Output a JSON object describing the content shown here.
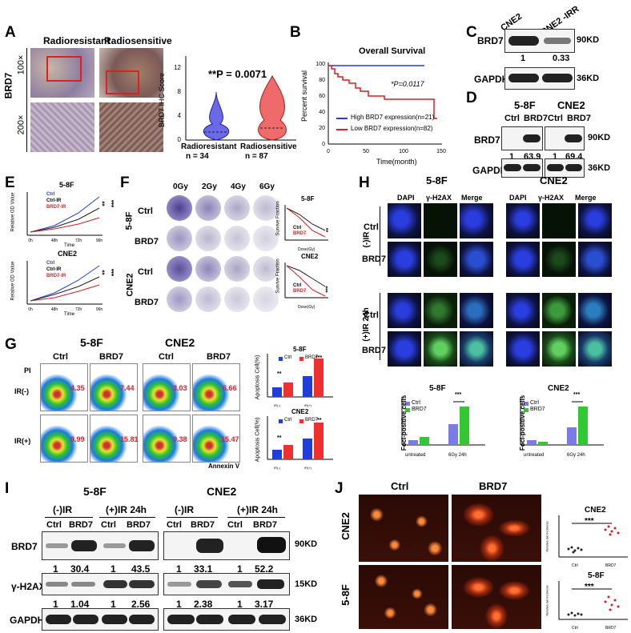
{
  "panels": {
    "A": {
      "letter": "A",
      "col_labels": [
        "Radioresistant",
        "Radiosensitive"
      ],
      "row_label": "BRD7",
      "mag_labels": [
        "100×",
        "200×"
      ],
      "violin": {
        "ylabel": "BRD7 IHC Score",
        "pvalue": "**P = 0.0071",
        "ticks": [
          "0",
          "4",
          "8",
          "12"
        ],
        "groups": [
          {
            "name": "Radioresistant",
            "n": "n = 34",
            "color": "#6a6ae8"
          },
          {
            "name": "Radiosensitive",
            "n": "n = 87",
            "color": "#ef6a6a"
          }
        ]
      }
    },
    "B": {
      "letter": "B",
      "title": "Overall Survival",
      "ylabel": "Percent survival",
      "xlabel": "Time(month)",
      "yticks": [
        "0",
        "20",
        "40",
        "60",
        "80",
        "100"
      ],
      "xticks": [
        "0",
        "50",
        "100",
        "150"
      ],
      "pvalue": "*P=0.0117",
      "legend": [
        {
          "label": "High BRD7 expression(n=21)",
          "color": "#1f3fd8"
        },
        {
          "label": "Low BRD7 expression(n=82)",
          "color": "#e01b1b"
        }
      ]
    },
    "C": {
      "letter": "C",
      "lanes": [
        "CNE2",
        "CNE2 -IRR"
      ],
      "rows": [
        {
          "name": "BRD7",
          "size": "90KD",
          "values": [
            "1",
            "0.33"
          ]
        },
        {
          "name": "GAPDH",
          "size": "36KD"
        }
      ]
    },
    "D": {
      "letter": "D",
      "cells": [
        "5-8F",
        "CNE2"
      ],
      "lanes": [
        "Ctrl",
        "BRD7",
        "Ctrl",
        "BRD7"
      ],
      "rows": [
        {
          "name": "BRD7",
          "size": "90KD",
          "values": [
            "1",
            "63.9",
            "1",
            "69.4"
          ]
        },
        {
          "name": "GAPDH",
          "size": "36KD"
        }
      ]
    },
    "E": {
      "letter": "E",
      "charts": [
        {
          "title": "5-8F",
          "ylabel": "Relative OD Value",
          "xlabel": "Time",
          "xticks": [
            "0h",
            "48h",
            "72h",
            "96h"
          ],
          "sig": [
            "**",
            "***"
          ],
          "legend": [
            "Ctrl",
            "Ctrl-IR",
            "BRD7-IR"
          ]
        },
        {
          "title": "CNE2",
          "ylabel": "Relative OD Value",
          "xlabel": "Time",
          "xticks": [
            "0h",
            "48h",
            "72h",
            "96h"
          ],
          "sig": [
            "**",
            "***"
          ],
          "legend": [
            "Ctrl",
            "Ctrl-IR",
            "BRD7-IR"
          ]
        }
      ]
    },
    "F": {
      "letter": "F",
      "doses": [
        "0Gy",
        "2Gy",
        "4Gy",
        "6Gy"
      ],
      "cells": [
        "5-8F",
        "CNE2"
      ],
      "rows": [
        "Ctrl",
        "BRD7",
        "Ctrl",
        "BRD7"
      ],
      "charts": [
        {
          "title": "5-8F",
          "ylabel": "Survive Fraction",
          "xlabel": "Dose(Gy)",
          "legend": [
            "Ctrl",
            "BRD7"
          ],
          "sig": "**"
        },
        {
          "title": "CNE2",
          "ylabel": "Survive Fraction",
          "xlabel": "Dose(Gy)",
          "legend": [
            "Ctrl",
            "BRD7"
          ],
          "sig": "***"
        }
      ]
    },
    "G": {
      "letter": "G",
      "cells": [
        "5-8F",
        "CNE2"
      ],
      "cols": [
        "Ctrl",
        "BRD7",
        "Ctrl",
        "BRD7"
      ],
      "rows": [
        "IR(-)",
        "IR(+)"
      ],
      "pi_label": "PI",
      "annexin_label": "Annexin V",
      "values": [
        [
          "4.35",
          "7.44",
          "3.03",
          "6.66"
        ],
        [
          "8.99",
          "15.81",
          "9.38",
          "15.47"
        ]
      ],
      "charts": [
        {
          "title": "5-8F",
          "ylabel": "Apoptosis Cell(%)",
          "legend": [
            "Ctrl",
            "BRD7"
          ],
          "xlabels": [
            "IR(-)",
            "IR(+)"
          ],
          "sig": [
            "**",
            "***"
          ]
        },
        {
          "title": "CNE2",
          "ylabel": "Apoptosis Cell(%)",
          "legend": [
            "Ctrl",
            "BRD7"
          ],
          "xlabels": [
            "IR(-)",
            "IR(+)"
          ],
          "sig": [
            "**",
            "**"
          ]
        }
      ]
    },
    "H": {
      "letter": "H",
      "cells": [
        "5-8F",
        "CNE2"
      ],
      "channels": [
        "DAPI",
        "γ-H2AX",
        "Merge"
      ],
      "rows": [
        "Ctrl",
        "BRD7",
        "Ctrl",
        "BRD7"
      ],
      "conditions": [
        "(-)IR",
        "(+)IR 24h"
      ],
      "scale": "20 μm",
      "charts": [
        {
          "title": "5-8F",
          "ylabel": "Foci-positive cells",
          "legend": [
            "Ctrl",
            "BRD7"
          ],
          "xlabels": [
            "untreated",
            "6Gy 24h"
          ],
          "sig": "***"
        },
        {
          "title": "CNE2",
          "ylabel": "Foci-positive cells",
          "legend": [
            "Ctrl",
            "BRD7"
          ],
          "xlabels": [
            "untreated",
            "6Gy 24h"
          ],
          "sig": "***"
        }
      ]
    },
    "I": {
      "letter": "I",
      "cells": [
        "5-8F",
        "CNE2"
      ],
      "conditions": [
        "(-)IR",
        "(+)IR 24h",
        "(-)IR",
        "(+)IR 24h"
      ],
      "lanes": [
        "Ctrl",
        "BRD7",
        "Ctrl",
        "BRD7",
        "Ctrl",
        "BRD7",
        "Ctrl",
        "BRD7"
      ],
      "rows": [
        {
          "name": "BRD7",
          "size": "90KD",
          "values": [
            "1",
            "30.4",
            "1",
            "43.5",
            "1",
            "33.1",
            "1",
            "52.2"
          ]
        },
        {
          "name": "γ-H2AX",
          "size": "15KD",
          "values": [
            "1",
            "1.04",
            "1",
            "2.56",
            "1",
            "2.38",
            "1",
            "3.17"
          ]
        },
        {
          "name": "GAPDH",
          "size": "36KD"
        }
      ]
    },
    "J": {
      "letter": "J",
      "cols": [
        "Ctrl",
        "BRD7"
      ],
      "rows": [
        "CNE2",
        "5-8F"
      ],
      "charts": [
        {
          "title": "CNE2",
          "sig": "***",
          "ylabel": "Relative tail moments",
          "xlabels": [
            "Ctrl",
            "BRD7"
          ]
        },
        {
          "title": "5-8F",
          "sig": "***",
          "ylabel": "Relative tail moments",
          "xlabels": [
            "Ctrl",
            "BRD7"
          ]
        }
      ]
    }
  }
}
